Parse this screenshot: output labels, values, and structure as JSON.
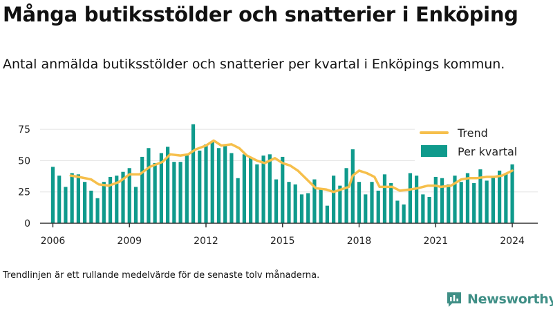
{
  "header": {
    "title": "Många butiksstölder och snatterier i Enköping",
    "subtitle": "Antal anmälda butiksstölder och snatterier per kvartal i Enköpings kommun."
  },
  "footnote": "Trendlinjen är ett rullande medelvärde för de senaste tolv månaderna.",
  "brand": {
    "name": "Newsworthy",
    "color": "#3f8f86",
    "icon": "newsworthy-logo-icon"
  },
  "colors": {
    "bars": "#0f9a8c",
    "trend": "#f6bf4b",
    "axis": "#333333",
    "grid": "#e2e2e2"
  },
  "chart_data": {
    "type": "bar",
    "x_ticks": [
      "2006",
      "2009",
      "2012",
      "2015",
      "2018",
      "2021",
      "2024"
    ],
    "y_ticks": [
      "0",
      "25",
      "50",
      "75"
    ],
    "ylim": [
      0,
      80
    ],
    "xlim": [
      2005.5,
      2025
    ],
    "grid": true,
    "legend_position": "top-right",
    "series": [
      {
        "name": "Per kvartal",
        "kind": "bar",
        "x": [
          2006.0,
          2006.25,
          2006.5,
          2006.75,
          2007.0,
          2007.25,
          2007.5,
          2007.75,
          2008.0,
          2008.25,
          2008.5,
          2008.75,
          2009.0,
          2009.25,
          2009.5,
          2009.75,
          2010.0,
          2010.25,
          2010.5,
          2010.75,
          2011.0,
          2011.25,
          2011.5,
          2011.75,
          2012.0,
          2012.25,
          2012.5,
          2012.75,
          2013.0,
          2013.25,
          2013.5,
          2013.75,
          2014.0,
          2014.25,
          2014.5,
          2014.75,
          2015.0,
          2015.25,
          2015.5,
          2015.75,
          2016.0,
          2016.25,
          2016.5,
          2016.75,
          2017.0,
          2017.25,
          2017.5,
          2017.75,
          2018.0,
          2018.25,
          2018.5,
          2018.75,
          2019.0,
          2019.25,
          2019.5,
          2019.75,
          2020.0,
          2020.25,
          2020.5,
          2020.75,
          2021.0,
          2021.25,
          2021.5,
          2021.75,
          2022.0,
          2022.25,
          2022.5,
          2022.75,
          2023.0,
          2023.25,
          2023.5,
          2023.75,
          2024.0
        ],
        "values": [
          45,
          38,
          29,
          40,
          39,
          33,
          26,
          20,
          33,
          37,
          38,
          41,
          44,
          29,
          53,
          60,
          48,
          56,
          61,
          49,
          49,
          55,
          79,
          58,
          63,
          65,
          60,
          63,
          56,
          36,
          55,
          52,
          47,
          54,
          55,
          35,
          53,
          33,
          31,
          23,
          24,
          35,
          27,
          14,
          38,
          30,
          44,
          59,
          33,
          23,
          33,
          26,
          39,
          32,
          18,
          15,
          40,
          38,
          23,
          21,
          37,
          36,
          31,
          38,
          33,
          40,
          32,
          43,
          34,
          37,
          42,
          40,
          47
        ]
      },
      {
        "name": "Trend",
        "kind": "line",
        "x": [
          2006.7,
          2007.0,
          2007.5,
          2007.8,
          2008.2,
          2008.6,
          2009.0,
          2009.4,
          2009.8,
          2010.3,
          2010.6,
          2011.0,
          2011.3,
          2011.6,
          2012.0,
          2012.3,
          2012.6,
          2013.0,
          2013.3,
          2013.6,
          2014.0,
          2014.3,
          2014.7,
          2015.0,
          2015.3,
          2015.6,
          2015.9,
          2016.3,
          2016.7,
          2017.0,
          2017.3,
          2017.6,
          2017.75,
          2018.0,
          2018.3,
          2018.6,
          2018.8,
          2019.3,
          2019.6,
          2020.0,
          2020.3,
          2020.7,
          2021.0,
          2021.2,
          2021.6,
          2022.0,
          2022.3,
          2022.6,
          2023.0,
          2023.3,
          2023.6,
          2024.0
        ],
        "values": [
          38,
          37,
          35,
          31,
          30,
          33,
          39,
          39,
          45,
          49,
          55,
          54,
          55,
          59,
          62,
          66,
          62,
          63,
          60,
          54,
          50,
          48,
          52,
          48,
          46,
          42,
          36,
          28,
          27,
          25,
          27,
          29,
          38,
          42,
          40,
          37,
          29,
          29,
          26,
          27,
          28,
          30,
          30,
          29,
          30,
          35,
          36,
          36,
          37,
          37,
          38,
          42
        ]
      }
    ]
  }
}
